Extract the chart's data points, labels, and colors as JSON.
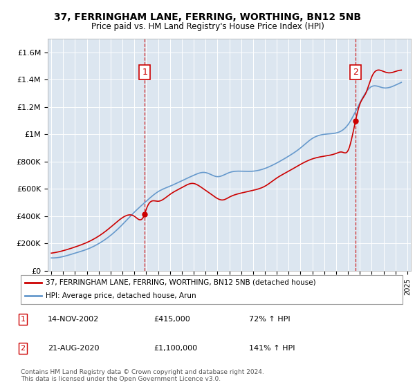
{
  "title": "37, FERRINGHAM LANE, FERRING, WORTHING, BN12 5NB",
  "subtitle": "Price paid vs. HM Land Registry's House Price Index (HPI)",
  "background_color": "#dce6f0",
  "plot_bg_color": "#dce6f0",
  "ylim": [
    0,
    1700000
  ],
  "yticks": [
    0,
    200000,
    400000,
    600000,
    800000,
    1000000,
    1200000,
    1400000,
    1600000
  ],
  "ytick_labels": [
    "£0",
    "£200K",
    "£400K",
    "£600K",
    "£800K",
    "£1M",
    "£1.2M",
    "£1.4M",
    "£1.6M"
  ],
  "x_start_year": 1995,
  "x_end_year": 2025,
  "transaction1": {
    "year": 2002.87,
    "price": 415000,
    "label": "1",
    "date": "14-NOV-2002",
    "pct": "72%"
  },
  "transaction2": {
    "year": 2020.64,
    "price": 1100000,
    "label": "2",
    "date": "21-AUG-2020",
    "pct": "141%"
  },
  "red_line_color": "#cc0000",
  "blue_line_color": "#6699cc",
  "marker_box_color": "#cc0000",
  "dashed_line_color": "#cc0000",
  "grid_color": "#ffffff",
  "legend_label_red": "37, FERRINGHAM LANE, FERRING, WORTHING, BN12 5NB (detached house)",
  "legend_label_blue": "HPI: Average price, detached house, Arun",
  "footnote": "Contains HM Land Registry data © Crown copyright and database right 2024.\nThis data is licensed under the Open Government Licence v3.0.",
  "table_rows": [
    {
      "num": "1",
      "date": "14-NOV-2002",
      "price": "£415,000",
      "pct": "72% ↑ HPI"
    },
    {
      "num": "2",
      "date": "21-AUG-2020",
      "price": "£1,100,000",
      "pct": "141% ↑ HPI"
    }
  ]
}
